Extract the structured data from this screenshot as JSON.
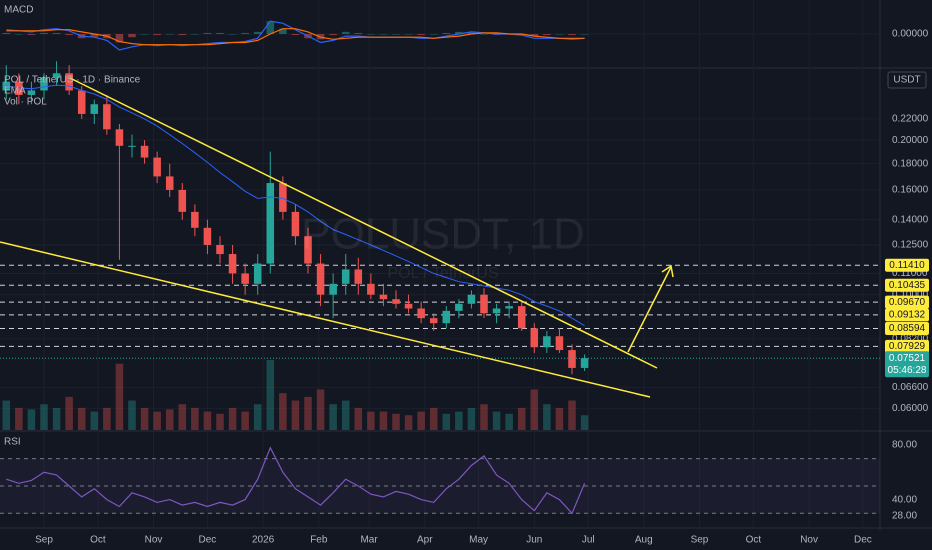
{
  "chart_data": {
    "type": "candlestick",
    "title": "POL / TetherUS · 1D · Binance",
    "ema_label": "EMA",
    "volume_label": "Vol · POL",
    "currency": "USDT",
    "watermark": "POLUSDT, 1D",
    "watermark_sub": "POL / TetherUS",
    "up_color": "#26a69a",
    "down_color": "#ef5350",
    "ema_color": "#2962ff",
    "level_color": "#ffeb3b",
    "log": true,
    "grid": true,
    "open": [
      0.25,
      0.26,
      0.245,
      0.25,
      0.265,
      0.27,
      0.25,
      0.225,
      0.235,
      0.21,
      0.195,
      0.195,
      0.185,
      0.17,
      0.16,
      0.145,
      0.135,
      0.125,
      0.12,
      0.11,
      0.105,
      0.115,
      0.165,
      0.145,
      0.13,
      0.115,
      0.1,
      0.105,
      0.112,
      0.105,
      0.1,
      0.098,
      0.096,
      0.094,
      0.09,
      0.088,
      0.093,
      0.096,
      0.1,
      0.092,
      0.094,
      0.095,
      0.086,
      0.079,
      0.083,
      0.078,
      0.072
    ],
    "high": [
      0.28,
      0.27,
      0.26,
      0.27,
      0.285,
      0.28,
      0.255,
      0.24,
      0.245,
      0.215,
      0.205,
      0.2,
      0.19,
      0.18,
      0.165,
      0.15,
      0.14,
      0.13,
      0.125,
      0.115,
      0.12,
      0.19,
      0.17,
      0.15,
      0.135,
      0.12,
      0.11,
      0.12,
      0.118,
      0.11,
      0.105,
      0.102,
      0.1,
      0.097,
      0.092,
      0.095,
      0.098,
      0.102,
      0.103,
      0.096,
      0.097,
      0.097,
      0.088,
      0.085,
      0.086,
      0.08,
      0.0765
    ],
    "low": [
      0.24,
      0.235,
      0.235,
      0.24,
      0.255,
      0.245,
      0.22,
      0.215,
      0.205,
      0.117,
      0.185,
      0.18,
      0.165,
      0.155,
      0.14,
      0.13,
      0.12,
      0.115,
      0.105,
      0.1,
      0.1,
      0.11,
      0.14,
      0.125,
      0.11,
      0.095,
      0.09,
      0.1,
      0.1,
      0.098,
      0.095,
      0.094,
      0.092,
      0.088,
      0.085,
      0.086,
      0.09,
      0.094,
      0.09,
      0.088,
      0.09,
      0.085,
      0.077,
      0.077,
      0.077,
      0.07,
      0.071
    ],
    "close": [
      0.26,
      0.245,
      0.25,
      0.265,
      0.27,
      0.25,
      0.225,
      0.235,
      0.21,
      0.195,
      0.195,
      0.185,
      0.17,
      0.16,
      0.145,
      0.135,
      0.125,
      0.12,
      0.11,
      0.105,
      0.115,
      0.165,
      0.145,
      0.13,
      0.115,
      0.1,
      0.105,
      0.112,
      0.105,
      0.1,
      0.098,
      0.096,
      0.094,
      0.09,
      0.088,
      0.093,
      0.096,
      0.1,
      0.092,
      0.094,
      0.095,
      0.086,
      0.079,
      0.083,
      0.078,
      0.072,
      0.07521
    ],
    "ema": [
      0.255,
      0.253,
      0.252,
      0.254,
      0.256,
      0.255,
      0.25,
      0.246,
      0.24,
      0.232,
      0.226,
      0.22,
      0.213,
      0.205,
      0.197,
      0.189,
      0.181,
      0.173,
      0.166,
      0.159,
      0.154,
      0.155,
      0.154,
      0.15,
      0.145,
      0.139,
      0.134,
      0.131,
      0.128,
      0.125,
      0.122,
      0.119,
      0.116,
      0.113,
      0.11,
      0.108,
      0.106,
      0.105,
      0.104,
      0.103,
      0.102,
      0.1,
      0.097,
      0.095,
      0.093,
      0.09,
      0.087
    ],
    "volume": [
      40,
      30,
      28,
      35,
      30,
      45,
      30,
      25,
      30,
      90,
      40,
      30,
      25,
      28,
      35,
      30,
      25,
      22,
      30,
      25,
      35,
      95,
      50,
      40,
      45,
      55,
      35,
      40,
      30,
      25,
      25,
      22,
      20,
      25,
      30,
      22,
      25,
      30,
      35,
      25,
      22,
      30,
      55,
      35,
      30,
      40,
      20
    ],
    "xlim": [
      -0.5,
      69.5
    ],
    "xticks": [
      {
        "value": 3,
        "label": "Sep"
      },
      {
        "value": 7.29,
        "label": "Oct"
      },
      {
        "value": 11.71,
        "label": "Nov"
      },
      {
        "value": 16,
        "label": "Dec"
      },
      {
        "value": 20.43,
        "label": "2026"
      },
      {
        "value": 24.86,
        "label": "Feb"
      },
      {
        "value": 28.86,
        "label": "Mar"
      },
      {
        "value": 33.29,
        "label": "Apr"
      },
      {
        "value": 37.57,
        "label": "May"
      },
      {
        "value": 42,
        "label": "Jun"
      },
      {
        "value": 46.29,
        "label": "Jul"
      },
      {
        "value": 50.71,
        "label": "Aug"
      },
      {
        "value": 55.14,
        "label": "Sep"
      },
      {
        "value": 59.43,
        "label": "Oct"
      },
      {
        "value": 63.86,
        "label": "Nov"
      },
      {
        "value": 68.14,
        "label": "Dec"
      }
    ],
    "ylim": [
      0.0545,
      0.274
    ],
    "yticks": [
      {
        "value": 0.22,
        "label": "0.22000"
      },
      {
        "value": 0.2,
        "label": "0.20000"
      },
      {
        "value": 0.18,
        "label": "0.18000"
      },
      {
        "value": 0.16,
        "label": "0.16000"
      },
      {
        "value": 0.14,
        "label": "0.14000"
      },
      {
        "value": 0.125,
        "label": "0.12500"
      },
      {
        "value": 0.11,
        "label": "0.11000"
      },
      {
        "value": 0.1,
        "label": "0.10000"
      },
      {
        "value": 0.082,
        "label": "0.08200"
      },
      {
        "value": 0.066,
        "label": "0.06600"
      },
      {
        "value": 0.06,
        "label": "0.06000"
      }
    ],
    "levels": [
      {
        "value": 0.1141,
        "label": "0.11410"
      },
      {
        "value": 0.10435,
        "label": "0.10435"
      },
      {
        "value": 0.0967,
        "label": "0.09670"
      },
      {
        "value": 0.09132,
        "label": "0.09132"
      },
      {
        "value": 0.08594,
        "label": "0.08594"
      },
      {
        "value": 0.07929,
        "label": "0.07929"
      }
    ],
    "last_price": {
      "value": 0.07521,
      "label": "0.07521"
    },
    "countdown": "05:46:28",
    "macd": {
      "label": "MACD",
      "ylim": [
        -0.03,
        0.03
      ],
      "yticks": [
        {
          "value": 0,
          "label": "0.00000"
        }
      ],
      "macd_color": "#2962ff",
      "signal_color": "#ff6d00",
      "macd": [
        0.004,
        0.003,
        0.002,
        0.004,
        0.005,
        0.003,
        -0.002,
        -0.003,
        -0.006,
        -0.015,
        -0.012,
        -0.01,
        -0.011,
        -0.01,
        -0.011,
        -0.01,
        -0.009,
        -0.008,
        -0.008,
        -0.007,
        -0.004,
        0.012,
        0.01,
        0.004,
        -0.002,
        -0.008,
        -0.006,
        -0.002,
        -0.002,
        -0.003,
        -0.003,
        -0.003,
        -0.003,
        -0.004,
        -0.004,
        -0.002,
        0,
        0.002,
        0.001,
        0,
        0,
        -0.001,
        -0.004,
        -0.004,
        -0.004,
        -0.005,
        -0.004
      ],
      "signal": [
        0.003,
        0.003,
        0.003,
        0.003,
        0.004,
        0.004,
        0.002,
        0,
        -0.002,
        -0.007,
        -0.009,
        -0.01,
        -0.01,
        -0.01,
        -0.01,
        -0.01,
        -0.01,
        -0.009,
        -0.008,
        -0.008,
        -0.006,
        0,
        0.005,
        0.005,
        0.002,
        -0.003,
        -0.005,
        -0.004,
        -0.003,
        -0.003,
        -0.003,
        -0.003,
        -0.003,
        -0.003,
        -0.004,
        -0.003,
        -0.002,
        0,
        0.001,
        0.001,
        0,
        0,
        -0.002,
        -0.003,
        -0.004,
        -0.004,
        -0.004
      ]
    },
    "rsi": {
      "label": "RSI",
      "ylim": [
        20.7,
        88.8
      ],
      "yticks": [
        {
          "value": 80,
          "label": "80.00"
        },
        {
          "value": 40,
          "label": "40.00"
        },
        {
          "value": 28,
          "label": "28.00"
        }
      ],
      "levels": [
        70,
        50,
        30
      ],
      "color": "#7e57c2",
      "values": [
        55,
        52,
        54,
        60,
        58,
        50,
        42,
        48,
        40,
        35,
        45,
        42,
        38,
        40,
        36,
        38,
        35,
        38,
        36,
        40,
        55,
        78,
        60,
        48,
        42,
        36,
        45,
        55,
        50,
        44,
        42,
        46,
        44,
        40,
        38,
        48,
        55,
        65,
        72,
        58,
        52,
        40,
        32,
        45,
        40,
        30,
        52
      ]
    }
  }
}
